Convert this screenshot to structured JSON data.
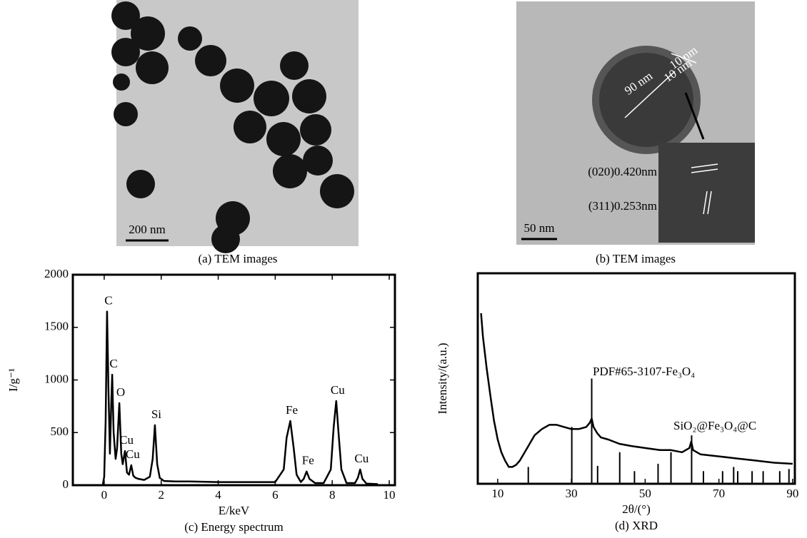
{
  "images": [
    {
      "caption": "(a) TEM images",
      "scale_bar": "200 nm"
    },
    {
      "caption": "(b) TEM images",
      "scale_bar": "50 nm",
      "labels": [
        "90 nm",
        "10 nm",
        "10 nm",
        "(020)0.420nm",
        "(311)0.253nm"
      ]
    }
  ],
  "chart_data": [
    {
      "type": "line",
      "caption": "(c) Energy spectrum",
      "x_label": "E/keV",
      "y_label": "I/g⁻¹",
      "xlim": [
        -1.1,
        10.2
      ],
      "xticks": [
        0,
        2,
        4,
        6,
        8,
        10
      ],
      "ylim": [
        0,
        2000
      ],
      "yticks": [
        0,
        500,
        1000,
        1500,
        2000
      ],
      "series": [
        {
          "color": "#000000",
          "x": [
            -0.05,
            0,
            0.05,
            0.1,
            0.15,
            0.2,
            0.25,
            0.28,
            0.33,
            0.4,
            0.45,
            0.53,
            0.6,
            0.65,
            0.73,
            0.8,
            0.87,
            0.95,
            1.02,
            1.1,
            1.2,
            1.4,
            1.6,
            1.7,
            1.78,
            1.86,
            1.95,
            2.1,
            2.5,
            3,
            4,
            5,
            6,
            6.3,
            6.4,
            6.53,
            6.65,
            6.75,
            6.9,
            7.0,
            7.1,
            7.2,
            7.4,
            7.7,
            7.95,
            8.05,
            8.14,
            8.22,
            8.32,
            8.5,
            8.8,
            8.9,
            8.98,
            9.06,
            9.2,
            9.6
          ],
          "values": [
            0,
            80,
            600,
            1650,
            900,
            300,
            800,
            1050,
            500,
            250,
            350,
            780,
            300,
            200,
            325,
            120,
            100,
            190,
            90,
            70,
            60,
            50,
            80,
            250,
            570,
            200,
            70,
            40,
            35,
            35,
            30,
            30,
            30,
            150,
            450,
            610,
            350,
            100,
            30,
            60,
            130,
            60,
            20,
            20,
            150,
            550,
            800,
            500,
            150,
            20,
            20,
            70,
            150,
            60,
            15,
            10
          ]
        }
      ],
      "annotations": [
        {
          "text": "C",
          "x": 0.1,
          "y": 1650
        },
        {
          "text": "C",
          "x": 0.28,
          "y": 1050
        },
        {
          "text": "O",
          "x": 0.53,
          "y": 780
        },
        {
          "text": "Cu",
          "x": 0.73,
          "y": 325
        },
        {
          "text": "Cu",
          "x": 0.95,
          "y": 190
        },
        {
          "text": "Si",
          "x": 1.78,
          "y": 570
        },
        {
          "text": "Fe",
          "x": 6.53,
          "y": 610
        },
        {
          "text": "Fe",
          "x": 7.1,
          "y": 130
        },
        {
          "text": "Cu",
          "x": 8.14,
          "y": 800
        },
        {
          "text": "Cu",
          "x": 8.98,
          "y": 150
        }
      ]
    },
    {
      "type": "line",
      "caption": "(d) XRD",
      "x_label": "2θ/(°)",
      "y_label": "Intensity/(a.u.)",
      "xlim": [
        4.6,
        90.6
      ],
      "xticks": [
        10,
        30,
        50,
        70,
        90
      ],
      "ylim": [
        0,
        100
      ],
      "series": [
        {
          "name": "SiO₂@Fe₃O₄@C",
          "color": "#000000",
          "x": [
            5.5,
            6,
            7,
            8,
            9,
            10,
            11,
            12,
            13,
            14,
            15,
            16,
            18,
            20,
            22,
            24,
            26,
            28,
            30,
            32,
            34,
            35,
            35.5,
            36,
            37,
            38,
            40,
            43,
            46,
            50,
            54,
            57,
            60,
            62,
            62.5,
            63,
            65,
            70,
            75,
            80,
            85,
            90
          ],
          "values": [
            81,
            70,
            55,
            42,
            30,
            21,
            15,
            11,
            8,
            8,
            9,
            11,
            17,
            23,
            26,
            28,
            28,
            27,
            26,
            26,
            27,
            29,
            31,
            27,
            24,
            22,
            21,
            19,
            18,
            17,
            16,
            16,
            15,
            17,
            20,
            16,
            14,
            13,
            12,
            11,
            10,
            9.5
          ]
        },
        {
          "name": "PDF#65-3107-Fe₃O₄",
          "color": "#000000",
          "style": "stem",
          "x": [
            18.3,
            30.1,
            35.5,
            37.1,
            43.1,
            47.1,
            53.5,
            57.0,
            62.6,
            65.8,
            71.0,
            74.0,
            75.1,
            79.0,
            82.0,
            86.5,
            89.0
          ],
          "values": [
            8,
            27,
            50,
            8.5,
            15,
            6,
            9.5,
            15,
            23,
            6,
            6,
            8,
            6,
            6,
            6,
            6,
            7
          ]
        }
      ]
    }
  ]
}
